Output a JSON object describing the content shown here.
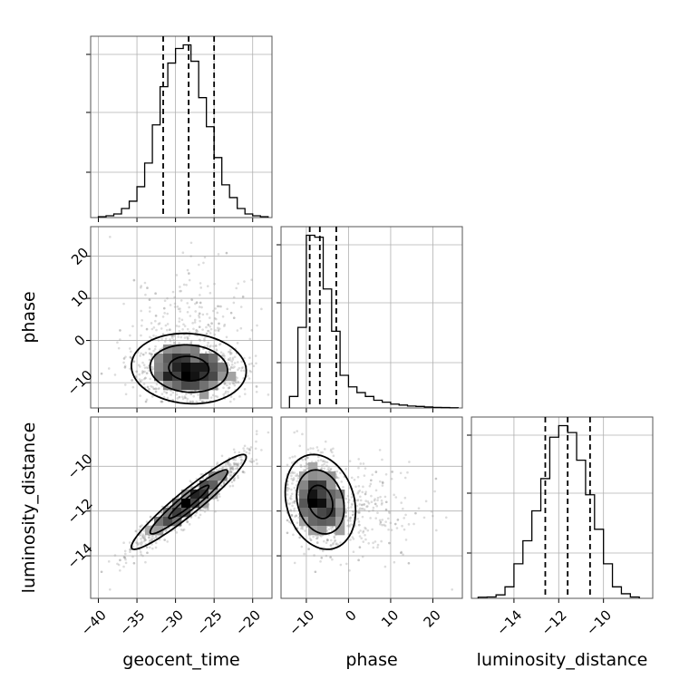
{
  "chart_data": {
    "type": "corner",
    "parameters": [
      "geocent_time",
      "phase",
      "luminosity_distance"
    ],
    "ranges": {
      "geocent_time": [
        -41,
        -17.5
      ],
      "phase": [
        -16,
        27
      ],
      "luminosity_distance": [
        -15.9,
        -7.8
      ]
    },
    "ticks": {
      "geocent_time": [
        -40,
        -35,
        -30,
        -25,
        -20
      ],
      "phase": [
        -10,
        0,
        10,
        20
      ],
      "luminosity_distance": [
        -14,
        -12,
        -10
      ]
    },
    "tick_labels": {
      "geocent_time": [
        "−40",
        "−35",
        "−30",
        "−25",
        "−20"
      ],
      "phase": [
        "−10",
        "0",
        "10",
        "20"
      ],
      "luminosity_distance": [
        "−14",
        "−12",
        "−10"
      ]
    },
    "xlabels": [
      "geocent_time",
      "phase",
      "luminosity_distance"
    ],
    "ylabels": [
      "",
      "phase",
      "luminosity_distance"
    ],
    "grid": true,
    "quantiles": {
      "geocent_time": [
        -31.6,
        -28.3,
        -25.0
      ],
      "phase": [
        -9.2,
        -6.8,
        -2.9
      ],
      "luminosity_distance": [
        -12.6,
        -11.6,
        -10.6
      ]
    },
    "histograms": {
      "geocent_time": {
        "edges": [
          -40,
          -39,
          -38,
          -37,
          -36,
          -35,
          -34,
          -33,
          -32,
          -31,
          -30,
          -29,
          -28,
          -27,
          -26,
          -25,
          -24,
          -23,
          -22,
          -21,
          -20,
          -19,
          -18
        ],
        "counts": [
          0.5,
          1,
          2,
          5,
          9,
          17,
          30,
          51,
          72,
          85,
          93,
          95,
          86,
          66,
          50,
          33,
          18,
          11,
          5,
          2,
          1,
          0.5
        ]
      },
      "phase": {
        "edges": [
          -14,
          -12,
          -10,
          -8,
          -6,
          -4,
          -2,
          0,
          2,
          4,
          6,
          8,
          10,
          12,
          14,
          16,
          18,
          20,
          22,
          24,
          26
        ],
        "counts": [
          6,
          42,
          90,
          89,
          62,
          40,
          17,
          11,
          8,
          6,
          4,
          3,
          2,
          1.5,
          1,
          0.8,
          0.5,
          0.3,
          0.2,
          0.1
        ]
      },
      "luminosity_distance": {
        "edges": [
          -15.6,
          -15.2,
          -14.8,
          -14.4,
          -14.0,
          -13.6,
          -13.2,
          -12.8,
          -12.4,
          -12.0,
          -11.6,
          -11.2,
          -10.8,
          -10.4,
          -10.0,
          -9.6,
          -9.2,
          -8.8,
          -8.4
        ],
        "counts": [
          0.5,
          0.6,
          1.5,
          5,
          15,
          25,
          38,
          52,
          70,
          75,
          72,
          60,
          45,
          30,
          15,
          5,
          2,
          0.6
        ]
      }
    },
    "correlations": {
      "geocent_time-phase": -0.15,
      "geocent_time-luminosity_distance": 0.96,
      "phase-luminosity_distance": -0.35
    }
  }
}
